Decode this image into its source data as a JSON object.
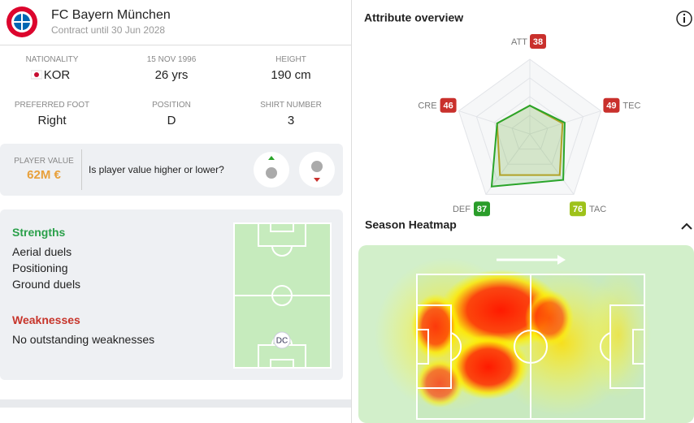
{
  "header": {
    "club": "FC Bayern München",
    "contract": "Contract until 30 Jun 2028"
  },
  "info": [
    {
      "label": "NATIONALITY",
      "value": "KOR"
    },
    {
      "label": "15 NOV 1996",
      "value": "26 yrs"
    },
    {
      "label": "HEIGHT",
      "value": "190 cm"
    },
    {
      "label": "PREFERRED FOOT",
      "value": "Right"
    },
    {
      "label": "POSITION",
      "value": "D"
    },
    {
      "label": "SHIRT NUMBER",
      "value": "3"
    }
  ],
  "player_value": {
    "label": "PLAYER VALUE",
    "value": "62M €",
    "question": "Is player value higher or lower?"
  },
  "strengths": {
    "title": "Strengths",
    "items": [
      "Aerial duels",
      "Positioning",
      "Ground duels"
    ]
  },
  "weaknesses": {
    "title": "Weaknesses",
    "items": [
      "No outstanding weaknesses"
    ]
  },
  "position_marker": "DC",
  "attribute_overview": {
    "title": "Attribute overview",
    "labels": [
      "ATT",
      "TEC",
      "TAC",
      "DEF",
      "CRE"
    ],
    "values": [
      38,
      49,
      76,
      87,
      46
    ],
    "average_values": [
      38,
      46,
      68,
      68,
      46
    ],
    "max": 100,
    "badge_colors": [
      "#c9302c",
      "#c9302c",
      "#9ec21a",
      "#2a9d2a",
      "#c9302c"
    ],
    "color": "#2aa52a",
    "average_color": "#c9a227"
  },
  "heatmap": {
    "title": "Season Heatmap"
  }
}
